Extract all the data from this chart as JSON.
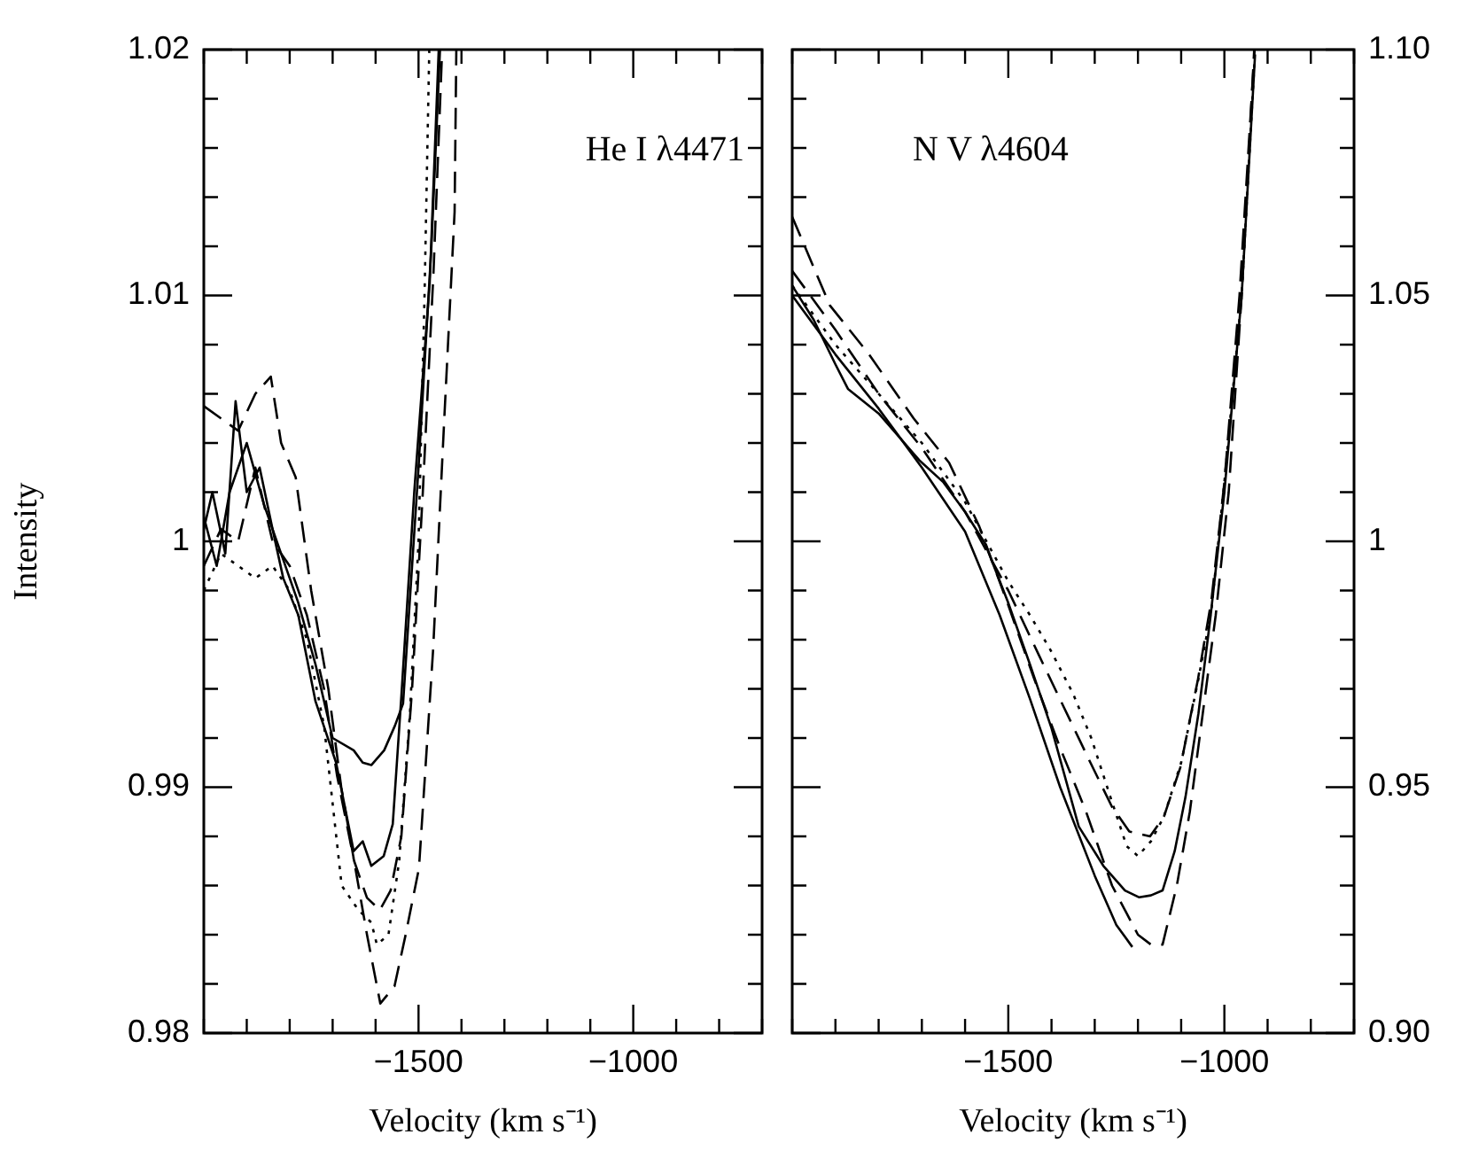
{
  "chart_data": [
    {
      "type": "line",
      "title": "He I λ4471",
      "xlabel": "Velocity (km s⁻¹)",
      "ylabel": "Intensity",
      "xlim": [
        -2000,
        -700
      ],
      "ylim": [
        0.98,
        1.02
      ],
      "xticks": [
        {
          "value": -2000,
          "label": null
        },
        {
          "value": -1900,
          "label": null
        },
        {
          "value": -1800,
          "label": null
        },
        {
          "value": -1700,
          "label": null
        },
        {
          "value": -1600,
          "label": null
        },
        {
          "value": -1500,
          "label": "−1500"
        },
        {
          "value": -1400,
          "label": null
        },
        {
          "value": -1300,
          "label": null
        },
        {
          "value": -1200,
          "label": null
        },
        {
          "value": -1100,
          "label": null
        },
        {
          "value": -1000,
          "label": "−1000"
        },
        {
          "value": -900,
          "label": null
        },
        {
          "value": -800,
          "label": null
        },
        {
          "value": -700,
          "label": null
        }
      ],
      "yticks": [
        0.98,
        {
          "value": 0.982,
          "label": null
        },
        {
          "value": 0.984,
          "label": null
        },
        {
          "value": 0.986,
          "label": null
        },
        {
          "value": 0.988,
          "label": null
        },
        0.99,
        {
          "value": 0.992,
          "label": null
        },
        {
          "value": 0.994,
          "label": null
        },
        {
          "value": 0.996,
          "label": null
        },
        {
          "value": 0.998,
          "label": null
        },
        1,
        {
          "value": 1.002,
          "label": null
        },
        {
          "value": 1.004,
          "label": null
        },
        {
          "value": 1.006,
          "label": null
        },
        {
          "value": 1.008,
          "label": null
        },
        1.01,
        {
          "value": 1.012,
          "label": null
        },
        {
          "value": 1.014,
          "label": null
        },
        {
          "value": 1.016,
          "label": null
        },
        {
          "value": 1.018,
          "label": null
        },
        1.02
      ],
      "series": [
        {
          "color": "#000000",
          "line_style": "solid",
          "x": [
            -2000,
            -1980,
            -1950,
            -1926,
            -1900,
            -1870,
            -1840,
            -1815,
            -1780,
            -1740,
            -1692,
            -1651,
            -1630,
            -1610,
            -1581,
            -1560,
            -1540,
            -1510,
            -1474,
            -1453
          ],
          "values": [
            1.0005,
            1.002,
            0.9995,
            1.0057,
            1.002,
            1.003,
            1.0005,
            0.9985,
            0.997,
            0.9935,
            0.991,
            0.9874,
            0.9878,
            0.9868,
            0.9872,
            0.9885,
            0.9937,
            1.002,
            1.0105,
            1.02
          ]
        },
        {
          "color": "#000000",
          "line_style": "solid",
          "x": [
            -2000,
            -1970,
            -1940,
            -1900,
            -1860,
            -1820,
            -1780,
            -1740,
            -1700,
            -1651,
            -1630,
            -1610,
            -1580,
            -1555,
            -1536,
            -1500,
            -1470,
            -1450
          ],
          "values": [
            1.001,
            0.999,
            1.002,
            1.004,
            1.0015,
            0.9995,
            0.9975,
            0.995,
            0.992,
            0.9915,
            0.991,
            0.9909,
            0.9915,
            0.9925,
            0.9934,
            1.003,
            1.012,
            1.02
          ]
        },
        {
          "color": "#000000",
          "line_style": "dotted",
          "x": [
            -2000,
            -1960,
            -1920,
            -1880,
            -1840,
            -1800,
            -1760,
            -1720,
            -1679,
            -1640,
            -1610,
            -1597,
            -1570,
            -1545,
            -1520,
            -1500,
            -1486,
            -1475
          ],
          "values": [
            0.998,
            0.9995,
            0.999,
            0.9985,
            0.999,
            0.998,
            0.996,
            0.9925,
            0.986,
            0.985,
            0.9845,
            0.9836,
            0.984,
            0.987,
            0.993,
            1.0,
            1.01,
            1.02
          ]
        },
        {
          "color": "#000000",
          "line_style": "dashed",
          "x": [
            -2000,
            -1960,
            -1920,
            -1880,
            -1844,
            -1820,
            -1786,
            -1750,
            -1710,
            -1680,
            -1650,
            -1620,
            -1589,
            -1556,
            -1530,
            -1499,
            -1466,
            -1440,
            -1416,
            -1412
          ],
          "values": [
            1.0055,
            1.005,
            1.0045,
            1.006,
            1.0067,
            1.004,
            1.0026,
            0.998,
            0.994,
            0.99,
            0.987,
            0.984,
            0.9812,
            0.9819,
            0.984,
            0.9867,
            0.9956,
            1.005,
            1.0134,
            1.02
          ]
        },
        {
          "color": "#000000",
          "line_style": "dashed",
          "x": [
            -2000,
            -1960,
            -1920,
            -1880,
            -1840,
            -1800,
            -1760,
            -1720,
            -1690,
            -1650,
            -1620,
            -1590,
            -1565,
            -1540,
            -1515,
            -1490,
            -1465,
            -1445
          ],
          "values": [
            0.999,
            1.0005,
            1.0,
            1.003,
            1.0,
            0.999,
            0.997,
            0.994,
            0.9905,
            0.987,
            0.9855,
            0.985,
            0.9858,
            0.988,
            0.994,
            1.002,
            1.011,
            1.02
          ]
        }
      ]
    },
    {
      "type": "line",
      "title": "N V λ4604",
      "xlabel": "Velocity (km s⁻¹)",
      "xlim": [
        -2000,
        -700
      ],
      "ylim": [
        0.9,
        1.1
      ],
      "xticks": [
        {
          "value": -2000,
          "label": null
        },
        {
          "value": -1900,
          "label": null
        },
        {
          "value": -1800,
          "label": null
        },
        {
          "value": -1700,
          "label": null
        },
        {
          "value": -1600,
          "label": null
        },
        {
          "value": -1500,
          "label": "−1500"
        },
        {
          "value": -1400,
          "label": null
        },
        {
          "value": -1300,
          "label": null
        },
        {
          "value": -1200,
          "label": null
        },
        {
          "value": -1100,
          "label": null
        },
        {
          "value": -1000,
          "label": "−1000"
        },
        {
          "value": -900,
          "label": null
        },
        {
          "value": -800,
          "label": null
        },
        {
          "value": -700,
          "label": null
        }
      ],
      "yticks": [
        {
          "value": 0.9,
          "label": "0.90"
        },
        {
          "value": 0.91,
          "label": null
        },
        {
          "value": 0.92,
          "label": null
        },
        {
          "value": 0.93,
          "label": null
        },
        {
          "value": 0.94,
          "label": null
        },
        0.95,
        {
          "value": 0.96,
          "label": null
        },
        {
          "value": 0.97,
          "label": null
        },
        {
          "value": 0.98,
          "label": null
        },
        {
          "value": 0.99,
          "label": null
        },
        1,
        {
          "value": 1.01,
          "label": null
        },
        {
          "value": 1.02,
          "label": null
        },
        {
          "value": 1.03,
          "label": null
        },
        {
          "value": 1.04,
          "label": null
        },
        1.05,
        {
          "value": 1.06,
          "label": null
        },
        {
          "value": 1.07,
          "label": null
        },
        {
          "value": 1.08,
          "label": null
        },
        {
          "value": 1.09,
          "label": null
        },
        {
          "value": 1.1,
          "label": "1.10"
        }
      ],
      "series": [
        {
          "color": "#000000",
          "line_style": "solid",
          "x": [
            -2000,
            -1950,
            -1900,
            -1871,
            -1800,
            -1706,
            -1650,
            -1600,
            -1554,
            -1501,
            -1450,
            -1400,
            -1337,
            -1280,
            -1230,
            -1197,
            -1170,
            -1143,
            -1115,
            -1090,
            -1060,
            -1033,
            -1000,
            -960,
            -929
          ],
          "values": [
            1.052,
            1.045,
            1.036,
            1.031,
            1.026,
            1.0165,
            1.012,
            1.006,
            0.9996,
            0.9877,
            0.975,
            0.962,
            0.942,
            0.934,
            0.929,
            0.9276,
            0.928,
            0.929,
            0.937,
            0.948,
            0.965,
            0.984,
            1.01,
            1.05,
            1.099
          ]
        },
        {
          "color": "#000000",
          "line_style": "solid",
          "x": [
            -2000,
            -1900,
            -1800,
            -1700,
            -1600,
            -1520,
            -1450,
            -1380,
            -1300,
            -1250,
            -1213
          ],
          "values": [
            1.05,
            1.038,
            1.027,
            1.015,
            1.002,
            0.985,
            0.968,
            0.95,
            0.932,
            0.922,
            0.9175
          ]
        },
        {
          "color": "#000000",
          "line_style": "dotted",
          "x": [
            -2000,
            -1900,
            -1800,
            -1700,
            -1600,
            -1501,
            -1450,
            -1403,
            -1350,
            -1308,
            -1260,
            -1226,
            -1200,
            -1170,
            -1140,
            -1100,
            -1060,
            -1030,
            -1000,
            -960,
            -930
          ],
          "values": [
            1.052,
            1.04,
            1.03,
            1.02,
            1.008,
            0.992,
            0.985,
            0.978,
            0.969,
            0.96,
            0.947,
            0.938,
            0.936,
            0.939,
            0.944,
            0.955,
            0.972,
            0.986,
            1.012,
            1.05,
            1.098
          ]
        },
        {
          "color": "#000000",
          "line_style": "dashed",
          "x": [
            -2000,
            -1913,
            -1822,
            -1719,
            -1637,
            -1567,
            -1500,
            -1440,
            -1380,
            -1320,
            -1260,
            -1200,
            -1170,
            -1143,
            -1110,
            -1080,
            -1050,
            -1020,
            -990,
            -960,
            -931
          ],
          "values": [
            1.066,
            1.048,
            1.038,
            1.025,
            1.016,
            1.003,
            0.987,
            0.972,
            0.958,
            0.945,
            0.93,
            0.92,
            0.918,
            0.918,
            0.93,
            0.945,
            0.965,
            0.985,
            1.01,
            1.05,
            1.1
          ]
        },
        {
          "color": "#000000",
          "line_style": "dashed",
          "x": [
            -2000,
            -1900,
            -1800,
            -1700,
            -1600,
            -1500,
            -1430,
            -1370,
            -1310,
            -1260,
            -1220,
            -1172,
            -1140,
            -1102,
            -1061,
            -1030,
            -1000,
            -965,
            -930
          ],
          "values": [
            1.055,
            1.043,
            1.03,
            1.019,
            1.006,
            0.99,
            0.977,
            0.966,
            0.955,
            0.946,
            0.941,
            0.94,
            0.944,
            0.954,
            0.972,
            0.988,
            1.012,
            1.05,
            1.1
          ]
        }
      ]
    }
  ]
}
